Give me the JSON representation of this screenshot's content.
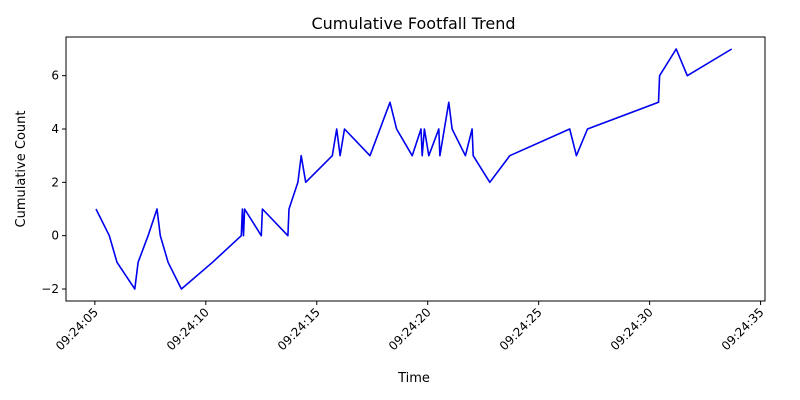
{
  "chart_data": {
    "type": "line",
    "title": "Cumulative Footfall Trend",
    "xlabel": "Time",
    "ylabel": "Cumulative Count",
    "x_ticks": [
      "09:24:05",
      "09:24:10",
      "09:24:15",
      "09:24:20",
      "09:24:25",
      "09:24:30",
      "09:24:35"
    ],
    "y_ticks": [
      "−2",
      "0",
      "2",
      "4",
      "6"
    ],
    "xlim": [
      "09:24:03.700",
      "09:24:35.200"
    ],
    "ylim": [
      -2.45,
      7.45
    ],
    "grid": false,
    "series": [
      {
        "color": "#0000ee",
        "x": [
          "09:24:05.050",
          "09:24:05.650",
          "09:24:06.000",
          "09:24:06.800",
          "09:24:06.950",
          "09:24:07.400",
          "09:24:07.800",
          "09:24:07.950",
          "09:24:08.300",
          "09:24:08.900",
          "09:24:10.300",
          "09:24:11.600",
          "09:24:11.650",
          "09:24:11.700",
          "09:24:11.750",
          "09:24:12.500",
          "09:24:12.550",
          "09:24:13.700",
          "09:24:13.750",
          "09:24:14.150",
          "09:24:14.300",
          "09:24:14.500",
          "09:24:15.700",
          "09:24:15.900",
          "09:24:16.050",
          "09:24:16.250",
          "09:24:17.400",
          "09:24:18.300",
          "09:24:18.600",
          "09:24:19.300",
          "09:24:19.700",
          "09:24:19.750",
          "09:24:19.850",
          "09:24:20.050",
          "09:24:20.500",
          "09:24:20.550",
          "09:24:20.950",
          "09:24:21.100",
          "09:24:21.700",
          "09:24:22.000",
          "09:24:22.050",
          "09:24:22.800",
          "09:24:23.700",
          "09:24:26.400",
          "09:24:26.700",
          "09:24:27.200",
          "09:24:30.400",
          "09:24:30.450",
          "09:24:31.200",
          "09:24:31.700",
          "09:24:33.700"
        ],
        "values": [
          1,
          0,
          -1,
          -2,
          -1,
          0,
          1,
          0,
          -1,
          -2,
          -1,
          0,
          1,
          0,
          1,
          0,
          1,
          0,
          1,
          2,
          3,
          2,
          3,
          4,
          3,
          4,
          3,
          5,
          4,
          3,
          4,
          3,
          4,
          3,
          4,
          3,
          5,
          4,
          3,
          4,
          3,
          2,
          3,
          4,
          3,
          4,
          5,
          6,
          7,
          6,
          7
        ]
      }
    ]
  }
}
